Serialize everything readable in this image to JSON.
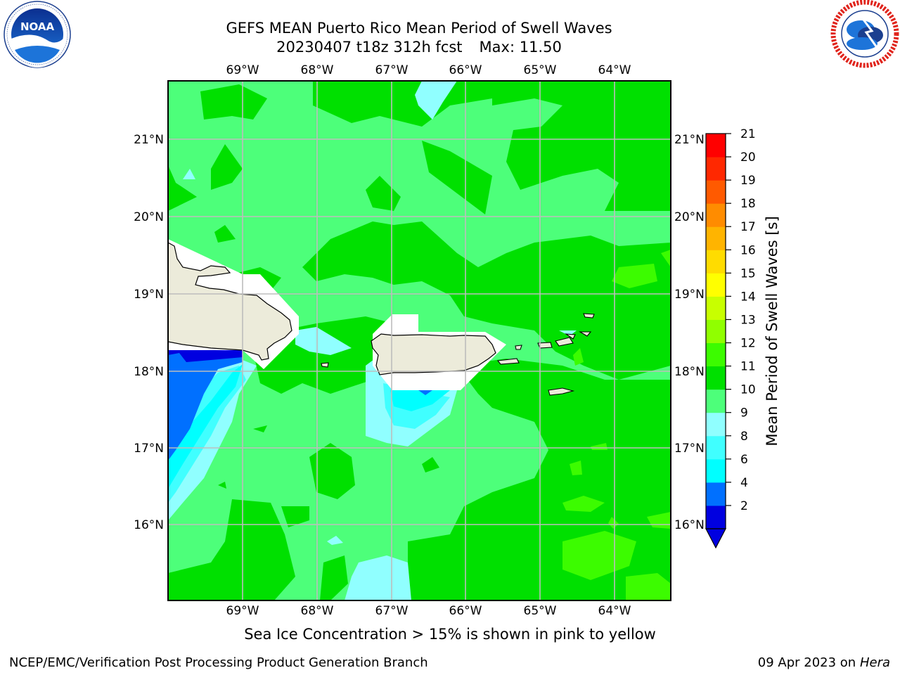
{
  "header": {
    "title_line1": "GEFS MEAN Puerto Rico Mean Period of Swell Waves",
    "title_date": "20230407 t18z 312h fcst",
    "title_max": "Max: 11.50"
  },
  "logos": {
    "left": "noara-logo",
    "right": "national-weather-service-logo"
  },
  "map": {
    "lon_ticks": [
      "69°W",
      "68°W",
      "67°W",
      "66°W",
      "65°W",
      "64°W"
    ],
    "lat_ticks": [
      "21°N",
      "20°N",
      "19°N",
      "18°N",
      "17°N",
      "16°N"
    ],
    "land_color": "#ecebda",
    "grid_color": "#bdbdbd"
  },
  "colorbar": {
    "label": "Mean Period of Swell Waves [s]",
    "levels": [
      "2",
      "4",
      "6",
      "7",
      "8",
      "9",
      "10",
      "11",
      "12",
      "13",
      "14",
      "15",
      "16",
      "17",
      "18",
      "19",
      "20",
      "21"
    ],
    "tick_labels": [
      "21",
      "20",
      "19",
      "18",
      "17",
      "16",
      "15",
      "14",
      "13",
      "12",
      "11",
      "10",
      "9",
      "8",
      "6",
      "4",
      "2"
    ],
    "colors": [
      "#0000e0",
      "#0070ff",
      "#00ffff",
      "#40ffff",
      "#90ffff",
      "#4dff7a",
      "#00e000",
      "#3cfc00",
      "#90ff00",
      "#c8ff00",
      "#ffff00",
      "#ffdc00",
      "#ffb400",
      "#ff8c00",
      "#ff5a00",
      "#ff2800",
      "#ff0000"
    ]
  },
  "caption": "Sea Ice Concentration > 15% is shown in pink to yellow",
  "footer": {
    "left": "NCEP/EMC/Verification Post Processing Product Generation Branch",
    "date": "09 Apr 2023 on ",
    "machine": "Hera"
  }
}
